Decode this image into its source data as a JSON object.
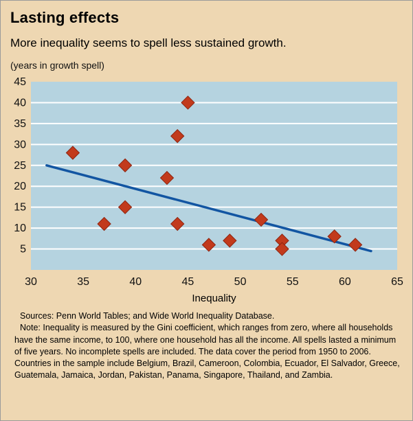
{
  "header": {
    "title": "Lasting effects",
    "subtitle": "More inequality seems to spell less sustained growth.",
    "units": "(years in growth spell)"
  },
  "chart_data": {
    "type": "scatter",
    "title": "Lasting effects",
    "subtitle": "More inequality seems to spell less sustained growth.",
    "xlabel": "Inequality",
    "ylabel": "(years in growth spell)",
    "xlim": [
      30,
      65
    ],
    "ylim": [
      0,
      45
    ],
    "x_ticks": [
      30,
      35,
      40,
      45,
      50,
      55,
      60,
      65
    ],
    "y_ticks": [
      5,
      10,
      15,
      20,
      25,
      30,
      35,
      40,
      45
    ],
    "grid": "horizontal-white-lines",
    "legend": "none",
    "points": [
      {
        "x": 34,
        "y": 28
      },
      {
        "x": 37,
        "y": 11
      },
      {
        "x": 39,
        "y": 25
      },
      {
        "x": 39,
        "y": 15
      },
      {
        "x": 43,
        "y": 22
      },
      {
        "x": 44,
        "y": 32
      },
      {
        "x": 44,
        "y": 11
      },
      {
        "x": 45,
        "y": 40
      },
      {
        "x": 47,
        "y": 6
      },
      {
        "x": 49,
        "y": 7
      },
      {
        "x": 52,
        "y": 12
      },
      {
        "x": 54,
        "y": 7
      },
      {
        "x": 54,
        "y": 5
      },
      {
        "x": 59,
        "y": 8
      },
      {
        "x": 61,
        "y": 6
      }
    ],
    "trendline": {
      "x1": 31.5,
      "y1": 25,
      "x2": 62.5,
      "y2": 4.5
    },
    "colors": {
      "background": "#eed7b2",
      "plot_background": "#b5d3e0",
      "marker": "#c23a1c",
      "marker_edge": "#8e2410",
      "trendline": "#1255a2",
      "gridline": "#ffffff",
      "tick_text": "#111111"
    }
  },
  "footer": {
    "sources": "Sources: Penn World Tables; and Wide World Inequality Database.",
    "note": "Note: Inequality is measured by the Gini coefficient, which ranges from zero, where all households have the same income, to 100, where one household has all the income. All spells lasted a minimum of five years. No incomplete spells are included. The data cover the period from 1950 to 2006. Countries in the sample include Belgium, Brazil, Cameroon, Colombia, Ecuador, El Salvador, Greece, Guatemala, Jamaica, Jordan, Pakistan, Panama, Singapore, Thailand, and Zambia."
  }
}
